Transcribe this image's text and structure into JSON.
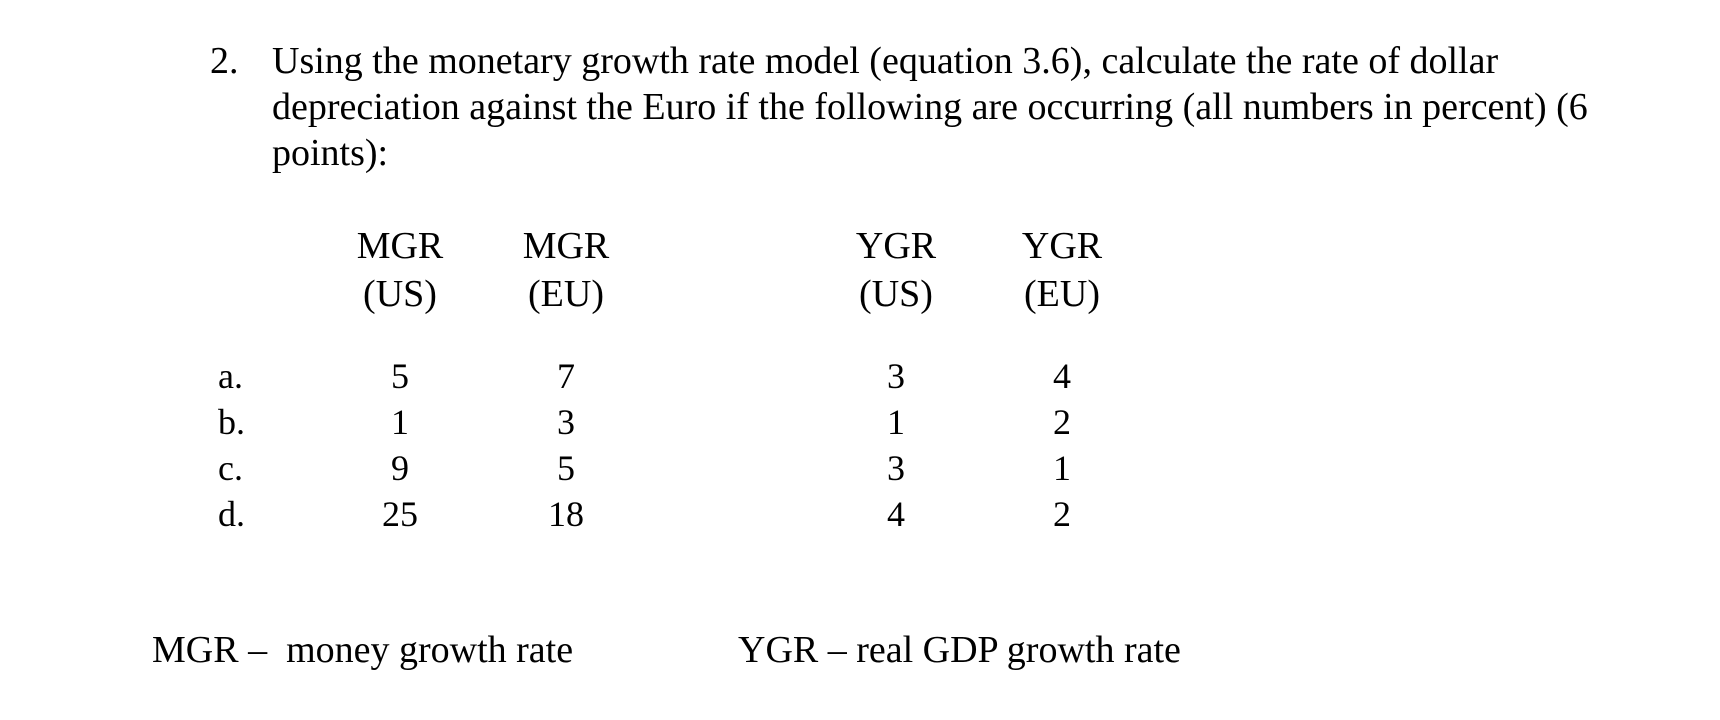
{
  "question": {
    "number": "2.",
    "text": "Using the monetary growth rate model (equation 3.6), calculate the rate of dollar depreciation against the Euro if the following are occurring (all numbers in percent) (6 points):"
  },
  "table": {
    "headers": [
      {
        "line1": "MGR",
        "line2": "(US)"
      },
      {
        "line1": "MGR",
        "line2": "(EU)"
      },
      {
        "line1": "YGR",
        "line2": "(US)"
      },
      {
        "line1": "YGR",
        "line2": "(EU)"
      }
    ],
    "rows": [
      {
        "label": "a.",
        "values": [
          "5",
          "7",
          "3",
          "4"
        ]
      },
      {
        "label": "b.",
        "values": [
          "1",
          "3",
          "1",
          "2"
        ]
      },
      {
        "label": "c.",
        "values": [
          "9",
          "5",
          "3",
          "1"
        ]
      },
      {
        "label": "d.",
        "values": [
          "25",
          "18",
          "4",
          "2"
        ]
      }
    ]
  },
  "legend": {
    "mgr": "MGR –  money growth rate",
    "ygr": "YGR – real GDP growth rate"
  }
}
